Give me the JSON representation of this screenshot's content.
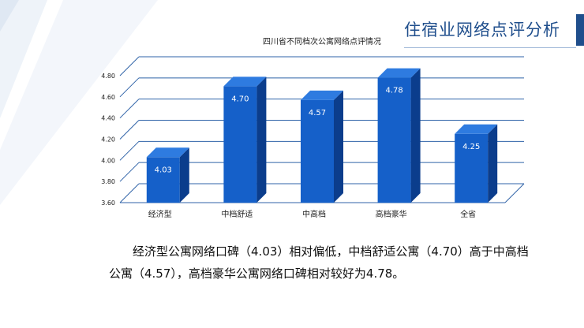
{
  "slide": {
    "title": "住宿业网络点评分析",
    "summary": "经济型公寓网络口碑（4.03）相对偏低，中档舒适公寓（4.70）高于中高档公寓（4.57），高档豪华公寓网络口碑相对较好为4.78。"
  },
  "colors": {
    "accent": "#1f4e8c",
    "bar_front": "#1560c9",
    "bar_side": "#0b3d8c",
    "bar_top": "#2e7be0",
    "grid": "#2f63a8"
  },
  "chart_data": {
    "type": "bar",
    "title": "四川省不同档次公寓网络点评情况",
    "categories": [
      "经济型",
      "中档舒适",
      "中高档",
      "高档豪华",
      "全省"
    ],
    "values": [
      4.03,
      4.7,
      4.57,
      4.78,
      4.25
    ],
    "value_labels": [
      "4.03",
      "4.70",
      "4.57",
      "4.78",
      "4.25"
    ],
    "ylim": [
      3.6,
      4.8
    ],
    "yticks": [
      "3.60",
      "3.80",
      "4.00",
      "4.20",
      "4.40",
      "4.60",
      "4.80"
    ],
    "grid": true,
    "legend": "none",
    "three_d": true
  }
}
